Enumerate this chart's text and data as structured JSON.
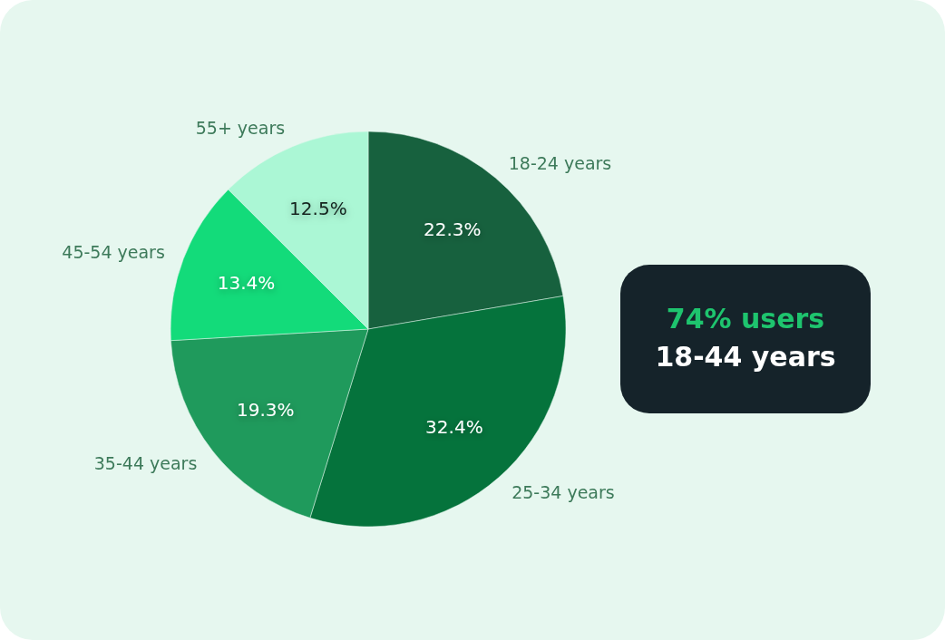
{
  "chart_data": {
    "type": "pie",
    "categories": [
      "18-24 years",
      "25-34 years",
      "35-44 years",
      "45-54 years",
      "55+ years"
    ],
    "values": [
      22.3,
      32.4,
      19.3,
      13.4,
      12.5
    ],
    "colors": [
      "#17613e",
      "#05733c",
      "#1f9a5c",
      "#13db7a",
      "#abf7d5"
    ],
    "value_labels": [
      "22.3%",
      "32.4%",
      "19.3%",
      "13.4%",
      "12.5%"
    ],
    "annotations": [
      "74% users",
      "18-44 years"
    ]
  }
}
